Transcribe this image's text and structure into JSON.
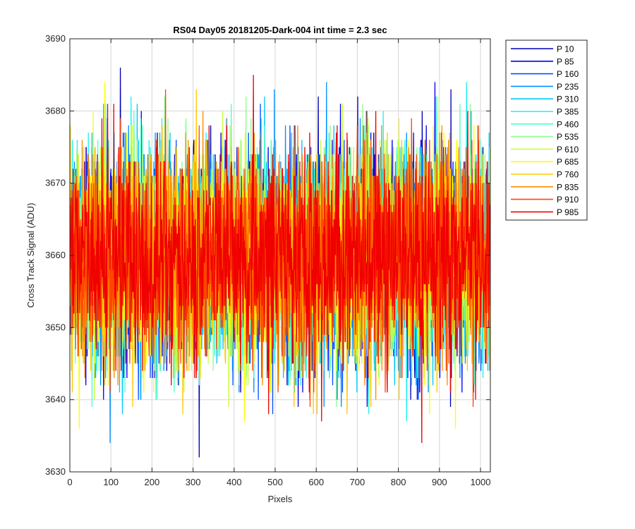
{
  "chart_data": {
    "type": "line",
    "title": "RS04 Day05 20181205-Dark-004 int time = 2.3 sec",
    "xlabel": "Pixels",
    "ylabel": "Cross Track Signal (ADU)",
    "xlim": [
      0,
      1024
    ],
    "ylim": [
      3630,
      3690
    ],
    "xticks": [
      0,
      100,
      200,
      300,
      400,
      500,
      600,
      700,
      800,
      900,
      1000
    ],
    "yticks": [
      3630,
      3640,
      3650,
      3660,
      3670,
      3680,
      3690
    ],
    "grid": true,
    "legend_position": "outside-top-right",
    "signal_mean": 3660,
    "signal_range": [
      3630,
      3687
    ],
    "num_pixels": 1024,
    "series": [
      {
        "name": "P 10",
        "color": "#0000b4"
      },
      {
        "name": "P 85",
        "color": "#0000f0"
      },
      {
        "name": "P 160",
        "color": "#0050ff"
      },
      {
        "name": "P 235",
        "color": "#0090ff"
      },
      {
        "name": "P 310",
        "color": "#00c8ff"
      },
      {
        "name": "P 385",
        "color": "#1ef0f0"
      },
      {
        "name": "P 460",
        "color": "#50ffc8"
      },
      {
        "name": "P 535",
        "color": "#8cff8c"
      },
      {
        "name": "P 610",
        "color": "#c8ff3c"
      },
      {
        "name": "P 685",
        "color": "#ffff00"
      },
      {
        "name": "P 760",
        "color": "#ffc800"
      },
      {
        "name": "P 835",
        "color": "#ff8c00"
      },
      {
        "name": "P 910",
        "color": "#ff4600"
      },
      {
        "name": "P 985",
        "color": "#f00000"
      }
    ]
  }
}
